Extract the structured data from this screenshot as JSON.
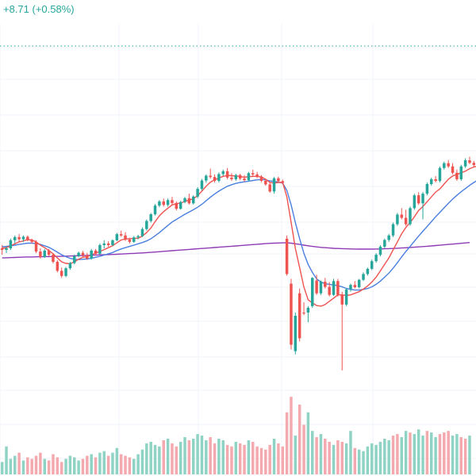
{
  "header": {
    "change_text": "+8.71 (+0.58%)"
  },
  "colors": {
    "up": "#26a69a",
    "down": "#ef5350",
    "up_volume": "#8fd3c5",
    "down_volume": "#f4a9ae",
    "ma_fast": "#ef5350",
    "ma_mid": "#4a7fe0",
    "ma_slow": "#8e3bb5",
    "grid": "#f0f3fa",
    "price_line": "#26a69a"
  },
  "chart_data": {
    "type": "candlestick",
    "grid": true,
    "current_price_line": "dotted",
    "price_range": [
      0,
      100
    ],
    "candles": [
      [
        40.0,
        41.0,
        38.0,
        39.5
      ],
      [
        39.5,
        40.5,
        38.5,
        40.0
      ],
      [
        40.0,
        43.0,
        39.5,
        42.5
      ],
      [
        42.5,
        44.0,
        41.5,
        43.5
      ],
      [
        43.5,
        44.5,
        42.0,
        42.8
      ],
      [
        42.8,
        44.0,
        42.0,
        43.6
      ],
      [
        43.6,
        44.0,
        42.2,
        42.5
      ],
      [
        42.5,
        43.0,
        41.5,
        42.0
      ],
      [
        42.0,
        42.5,
        38.5,
        39.0
      ],
      [
        39.0,
        40.0,
        36.8,
        37.3
      ],
      [
        37.3,
        39.8,
        37.0,
        39.3
      ],
      [
        39.3,
        39.8,
        37.5,
        38.0
      ],
      [
        38.0,
        38.5,
        35.3,
        35.8
      ],
      [
        35.8,
        36.3,
        32.5,
        33.0
      ],
      [
        33.0,
        34.0,
        30.8,
        31.4
      ],
      [
        31.4,
        34.2,
        31.0,
        33.8
      ],
      [
        33.8,
        35.8,
        33.3,
        35.4
      ],
      [
        35.4,
        38.0,
        35.0,
        37.6
      ],
      [
        37.6,
        39.0,
        37.2,
        38.6
      ],
      [
        38.6,
        39.2,
        37.3,
        37.8
      ],
      [
        37.8,
        38.6,
        36.4,
        36.8
      ],
      [
        36.8,
        39.8,
        36.5,
        39.3
      ],
      [
        39.3,
        39.8,
        37.8,
        38.3
      ],
      [
        38.3,
        41.5,
        38.0,
        41.0
      ],
      [
        41.0,
        42.5,
        40.0,
        41.5
      ],
      [
        41.5,
        42.2,
        40.5,
        41.0
      ],
      [
        41.0,
        42.8,
        40.7,
        42.5
      ],
      [
        42.5,
        44.8,
        42.2,
        44.4
      ],
      [
        44.4,
        45.5,
        43.6,
        44.0
      ],
      [
        44.0,
        45.0,
        42.3,
        42.7
      ],
      [
        42.7,
        43.3,
        41.5,
        42.0
      ],
      [
        42.0,
        43.8,
        41.7,
        43.4
      ],
      [
        43.4,
        44.2,
        42.8,
        43.8
      ],
      [
        43.8,
        46.5,
        43.5,
        46.0
      ],
      [
        46.0,
        49.0,
        45.5,
        48.5
      ],
      [
        48.5,
        51.0,
        48.0,
        50.6
      ],
      [
        50.6,
        53.8,
        50.2,
        53.3
      ],
      [
        53.3,
        55.0,
        52.8,
        54.6
      ],
      [
        54.6,
        55.5,
        53.0,
        53.5
      ],
      [
        53.5,
        55.5,
        53.0,
        55.0
      ],
      [
        55.0,
        56.0,
        53.6,
        54.1
      ],
      [
        54.1,
        54.6,
        51.8,
        52.3
      ],
      [
        52.3,
        54.8,
        52.0,
        54.4
      ],
      [
        54.4,
        56.0,
        54.0,
        55.6
      ],
      [
        55.6,
        57.0,
        53.6,
        54.0
      ],
      [
        54.0,
        56.5,
        53.6,
        56.1
      ],
      [
        56.1,
        59.0,
        55.6,
        58.5
      ],
      [
        58.5,
        61.6,
        58.0,
        61.1
      ],
      [
        61.1,
        63.0,
        60.4,
        62.6
      ],
      [
        62.6,
        64.8,
        61.7,
        62.2
      ],
      [
        62.2,
        63.0,
        60.5,
        61.0
      ],
      [
        61.0,
        63.6,
        60.5,
        63.1
      ],
      [
        63.1,
        64.5,
        62.5,
        64.0
      ],
      [
        64.0,
        65.0,
        61.5,
        62.0
      ],
      [
        62.0,
        63.4,
        61.0,
        61.5
      ],
      [
        61.5,
        63.2,
        61.0,
        62.8
      ],
      [
        62.8,
        63.2,
        61.2,
        61.7
      ],
      [
        61.7,
        62.8,
        60.7,
        61.2
      ],
      [
        61.2,
        63.8,
        60.8,
        63.4
      ],
      [
        63.4,
        64.5,
        62.5,
        63.0
      ],
      [
        63.0,
        63.8,
        61.8,
        62.3
      ],
      [
        62.3,
        62.8,
        60.6,
        61.0
      ],
      [
        61.0,
        61.6,
        59.5,
        59.9
      ],
      [
        59.9,
        60.4,
        57.3,
        57.7
      ],
      [
        57.7,
        62.2,
        57.0,
        61.8
      ],
      [
        61.8,
        62.3,
        60.5,
        60.9
      ],
      [
        60.9,
        61.4,
        59.9,
        60.4
      ],
      [
        43.0,
        44.0,
        31.5,
        32.0
      ],
      [
        29.0,
        30.5,
        8.5,
        10.0
      ],
      [
        8.0,
        20.0,
        7.0,
        19.0
      ],
      [
        26.0,
        27.5,
        11.0,
        12.0
      ],
      [
        20.0,
        23.2,
        19.2,
        19.8
      ],
      [
        20.0,
        22.0,
        17.0,
        21.5
      ],
      [
        22.0,
        31.0,
        21.5,
        30.8
      ],
      [
        30.0,
        31.8,
        25.5,
        26.0
      ],
      [
        26.0,
        30.0,
        25.5,
        29.6
      ],
      [
        29.6,
        30.8,
        27.5,
        28.0
      ],
      [
        28.0,
        29.5,
        25.0,
        25.5
      ],
      [
        25.5,
        30.5,
        25.2,
        29.8
      ],
      [
        29.8,
        30.5,
        25.0,
        25.5
      ],
      [
        25.5,
        26.5,
        2.0,
        22.5
      ],
      [
        22.5,
        27.5,
        22.0,
        27.2
      ],
      [
        27.2,
        29.0,
        26.5,
        28.6
      ],
      [
        28.6,
        29.8,
        27.5,
        27.9
      ],
      [
        27.9,
        30.5,
        27.5,
        30.2
      ],
      [
        30.2,
        32.5,
        29.8,
        32.0
      ],
      [
        32.0,
        34.0,
        31.5,
        33.6
      ],
      [
        33.6,
        36.5,
        33.2,
        36.0
      ],
      [
        36.0,
        38.5,
        35.5,
        38.0
      ],
      [
        38.0,
        41.0,
        37.5,
        40.5
      ],
      [
        40.5,
        43.0,
        40.0,
        42.6
      ],
      [
        42.6,
        44.5,
        42.0,
        44.0
      ],
      [
        44.0,
        48.0,
        43.5,
        47.5
      ],
      [
        47.5,
        51.0,
        47.0,
        50.5
      ],
      [
        50.5,
        52.5,
        49.0,
        49.5
      ],
      [
        49.5,
        52.0,
        47.0,
        47.5
      ],
      [
        47.5,
        53.0,
        47.0,
        52.5
      ],
      [
        52.5,
        57.0,
        52.0,
        56.5
      ],
      [
        56.5,
        57.5,
        53.5,
        54.0
      ],
      [
        54.0,
        57.5,
        49.0,
        57.0
      ],
      [
        57.0,
        60.5,
        56.5,
        60.0
      ],
      [
        60.0,
        62.0,
        59.5,
        61.5
      ],
      [
        61.5,
        62.5,
        60.5,
        61.0
      ],
      [
        61.0,
        65.5,
        60.5,
        65.0
      ],
      [
        65.0,
        67.0,
        64.5,
        66.5
      ],
      [
        66.5,
        67.5,
        65.0,
        65.5
      ],
      [
        65.5,
        66.5,
        63.0,
        63.5
      ],
      [
        63.5,
        64.5,
        61.0,
        61.5
      ],
      [
        61.5,
        66.0,
        61.0,
        65.5
      ],
      [
        65.5,
        68.0,
        65.0,
        67.4
      ],
      [
        67.4,
        68.5,
        66.2,
        66.6
      ],
      [
        66.6,
        67.2,
        65.4,
        65.9
      ]
    ],
    "ma_fast": [
      40.0,
      40.2,
      40.8,
      41.4,
      42.0,
      42.3,
      42.7,
      42.6,
      42.0,
      41.0,
      40.2,
      39.3,
      38.3,
      37.0,
      35.8,
      35.3,
      35.2,
      35.8,
      36.6,
      37.2,
      37.4,
      38.0,
      38.5,
      39.0,
      39.6,
      40.2,
      40.8,
      41.7,
      42.6,
      42.9,
      43.0,
      43.1,
      43.1,
      43.8,
      44.9,
      46.3,
      48.3,
      50.1,
      51.4,
      52.5,
      53.5,
      53.9,
      54.1,
      54.6,
      55.0,
      55.4,
      56.4,
      57.8,
      59.3,
      60.6,
      61.3,
      61.9,
      62.4,
      62.7,
      62.6,
      62.5,
      62.4,
      62.1,
      62.3,
      62.4,
      62.4,
      62.2,
      61.5,
      60.5,
      60.3,
      60.5,
      60.5,
      56.0,
      48.0,
      40.0,
      34.0,
      28.0,
      24.0,
      23.0,
      22.2,
      22.0,
      22.5,
      23.5,
      24.5,
      25.5,
      25.5,
      25.3,
      25.5,
      26.0,
      26.5,
      27.3,
      28.3,
      29.5,
      31.0,
      33.0,
      35.0,
      37.0,
      39.5,
      42.0,
      44.5,
      46.5,
      48.0,
      49.8,
      51.8,
      53.0,
      54.5,
      56.0,
      57.5,
      58.5,
      60.0,
      61.5,
      62.5,
      63.0,
      63.5,
      64.0,
      64.8,
      65.3,
      65.6
    ],
    "ma_mid": [
      40.5,
      40.6,
      40.8,
      41.0,
      41.2,
      41.4,
      41.6,
      41.6,
      41.5,
      41.2,
      40.8,
      40.3,
      39.6,
      38.8,
      38.0,
      37.4,
      36.9,
      36.6,
      36.5,
      36.6,
      36.7,
      36.9,
      37.2,
      37.5,
      37.9,
      38.3,
      38.7,
      39.3,
      39.8,
      40.2,
      40.6,
      41.0,
      41.4,
      41.8,
      42.3,
      43.0,
      43.9,
      44.9,
      46.0,
      47.1,
      48.2,
      49.0,
      49.8,
      50.6,
      51.3,
      52.0,
      52.8,
      53.7,
      54.8,
      55.9,
      56.9,
      57.8,
      58.6,
      59.3,
      59.8,
      60.2,
      60.5,
      60.7,
      60.9,
      61.1,
      61.3,
      61.4,
      61.3,
      61.0,
      60.8,
      60.6,
      60.3,
      58.0,
      53.5,
      48.0,
      43.0,
      38.5,
      35.0,
      32.5,
      30.5,
      29.5,
      29.0,
      28.8,
      28.6,
      28.4,
      28.0,
      27.5,
      27.2,
      27.0,
      27.0,
      27.2,
      27.5,
      28.0,
      28.8,
      29.8,
      31.0,
      32.3,
      33.8,
      35.5,
      37.3,
      39.0,
      40.6,
      42.2,
      43.8,
      45.3,
      46.8,
      48.3,
      49.8,
      51.2,
      52.6,
      54.0,
      55.3,
      56.5,
      57.6,
      58.6,
      59.6,
      60.5,
      61.3
    ],
    "ma_slow": [
      37.0,
      37.05,
      37.1,
      37.15,
      37.2,
      37.25,
      37.3,
      37.32,
      37.35,
      37.37,
      37.4,
      37.42,
      37.45,
      37.47,
      37.5,
      37.55,
      37.6,
      37.65,
      37.7,
      37.75,
      37.8,
      37.85,
      37.9,
      37.95,
      38.0,
      38.05,
      38.1,
      38.16,
      38.23,
      38.3,
      38.36,
      38.43,
      38.5,
      38.58,
      38.66,
      38.75,
      38.85,
      38.95,
      39.05,
      39.15,
      39.25,
      39.35,
      39.45,
      39.55,
      39.65,
      39.75,
      39.85,
      39.95,
      40.05,
      40.15,
      40.25,
      40.35,
      40.45,
      40.55,
      40.65,
      40.75,
      40.85,
      40.95,
      41.05,
      41.15,
      41.25,
      41.35,
      41.45,
      41.55,
      41.6,
      41.65,
      41.7,
      41.7,
      41.6,
      41.4,
      41.2,
      41.0,
      40.8,
      40.6,
      40.45,
      40.3,
      40.2,
      40.1,
      40.0,
      39.95,
      39.9,
      39.85,
      39.8,
      39.78,
      39.76,
      39.75,
      39.75,
      39.76,
      39.78,
      39.8,
      39.85,
      39.9,
      39.96,
      40.02,
      40.1,
      40.18,
      40.26,
      40.35,
      40.45,
      40.55,
      40.65,
      40.75,
      40.86,
      40.97,
      41.08,
      41.2,
      41.32,
      41.44,
      41.56,
      41.68,
      41.8
    ],
    "volume": [
      8,
      18,
      10,
      12,
      14,
      9,
      11,
      10,
      12,
      14,
      10,
      9,
      13,
      11,
      8,
      10,
      12,
      11,
      9,
      10,
      12,
      13,
      11,
      14,
      15,
      12,
      14,
      17,
      13,
      12,
      11,
      10,
      13,
      16,
      20,
      21,
      19,
      18,
      22,
      23,
      20,
      18,
      21,
      24,
      22,
      23,
      26,
      25,
      22,
      24,
      20,
      23,
      22,
      19,
      18,
      21,
      20,
      19,
      22,
      21,
      18,
      17,
      16,
      19,
      23,
      20,
      18,
      40,
      50,
      25,
      45,
      32,
      40,
      28,
      24,
      26,
      23,
      21,
      19,
      22,
      21,
      20,
      28,
      17,
      16,
      15,
      18,
      20,
      19,
      21,
      23,
      22,
      25,
      26,
      24,
      28,
      27,
      26,
      29,
      25,
      28,
      27,
      24,
      26,
      27,
      28,
      25,
      26,
      24,
      23,
      25
    ],
    "volume_range": [
      0,
      100
    ],
    "volume_up_flags": [
      1,
      1,
      1,
      1,
      0,
      1,
      0,
      0,
      0,
      0,
      1,
      0,
      0,
      0,
      0,
      1,
      1,
      1,
      1,
      0,
      0,
      1,
      0,
      1,
      1,
      0,
      1,
      1,
      0,
      0,
      0,
      1,
      1,
      1,
      1,
      1,
      1,
      1,
      0,
      1,
      0,
      0,
      1,
      1,
      0,
      1,
      1,
      1,
      1,
      0,
      0,
      1,
      1,
      0,
      0,
      1,
      0,
      0,
      1,
      0,
      0,
      0,
      0,
      0,
      1,
      0,
      0,
      0,
      0,
      1,
      0,
      0,
      1,
      1,
      0,
      1,
      0,
      0,
      1,
      0,
      0,
      1,
      1,
      0,
      1,
      1,
      1,
      1,
      1,
      1,
      1,
      1,
      0,
      0,
      1,
      1,
      0,
      1,
      1,
      1,
      0,
      1,
      1,
      0,
      0,
      0,
      1,
      1,
      0,
      0,
      1
    ]
  }
}
